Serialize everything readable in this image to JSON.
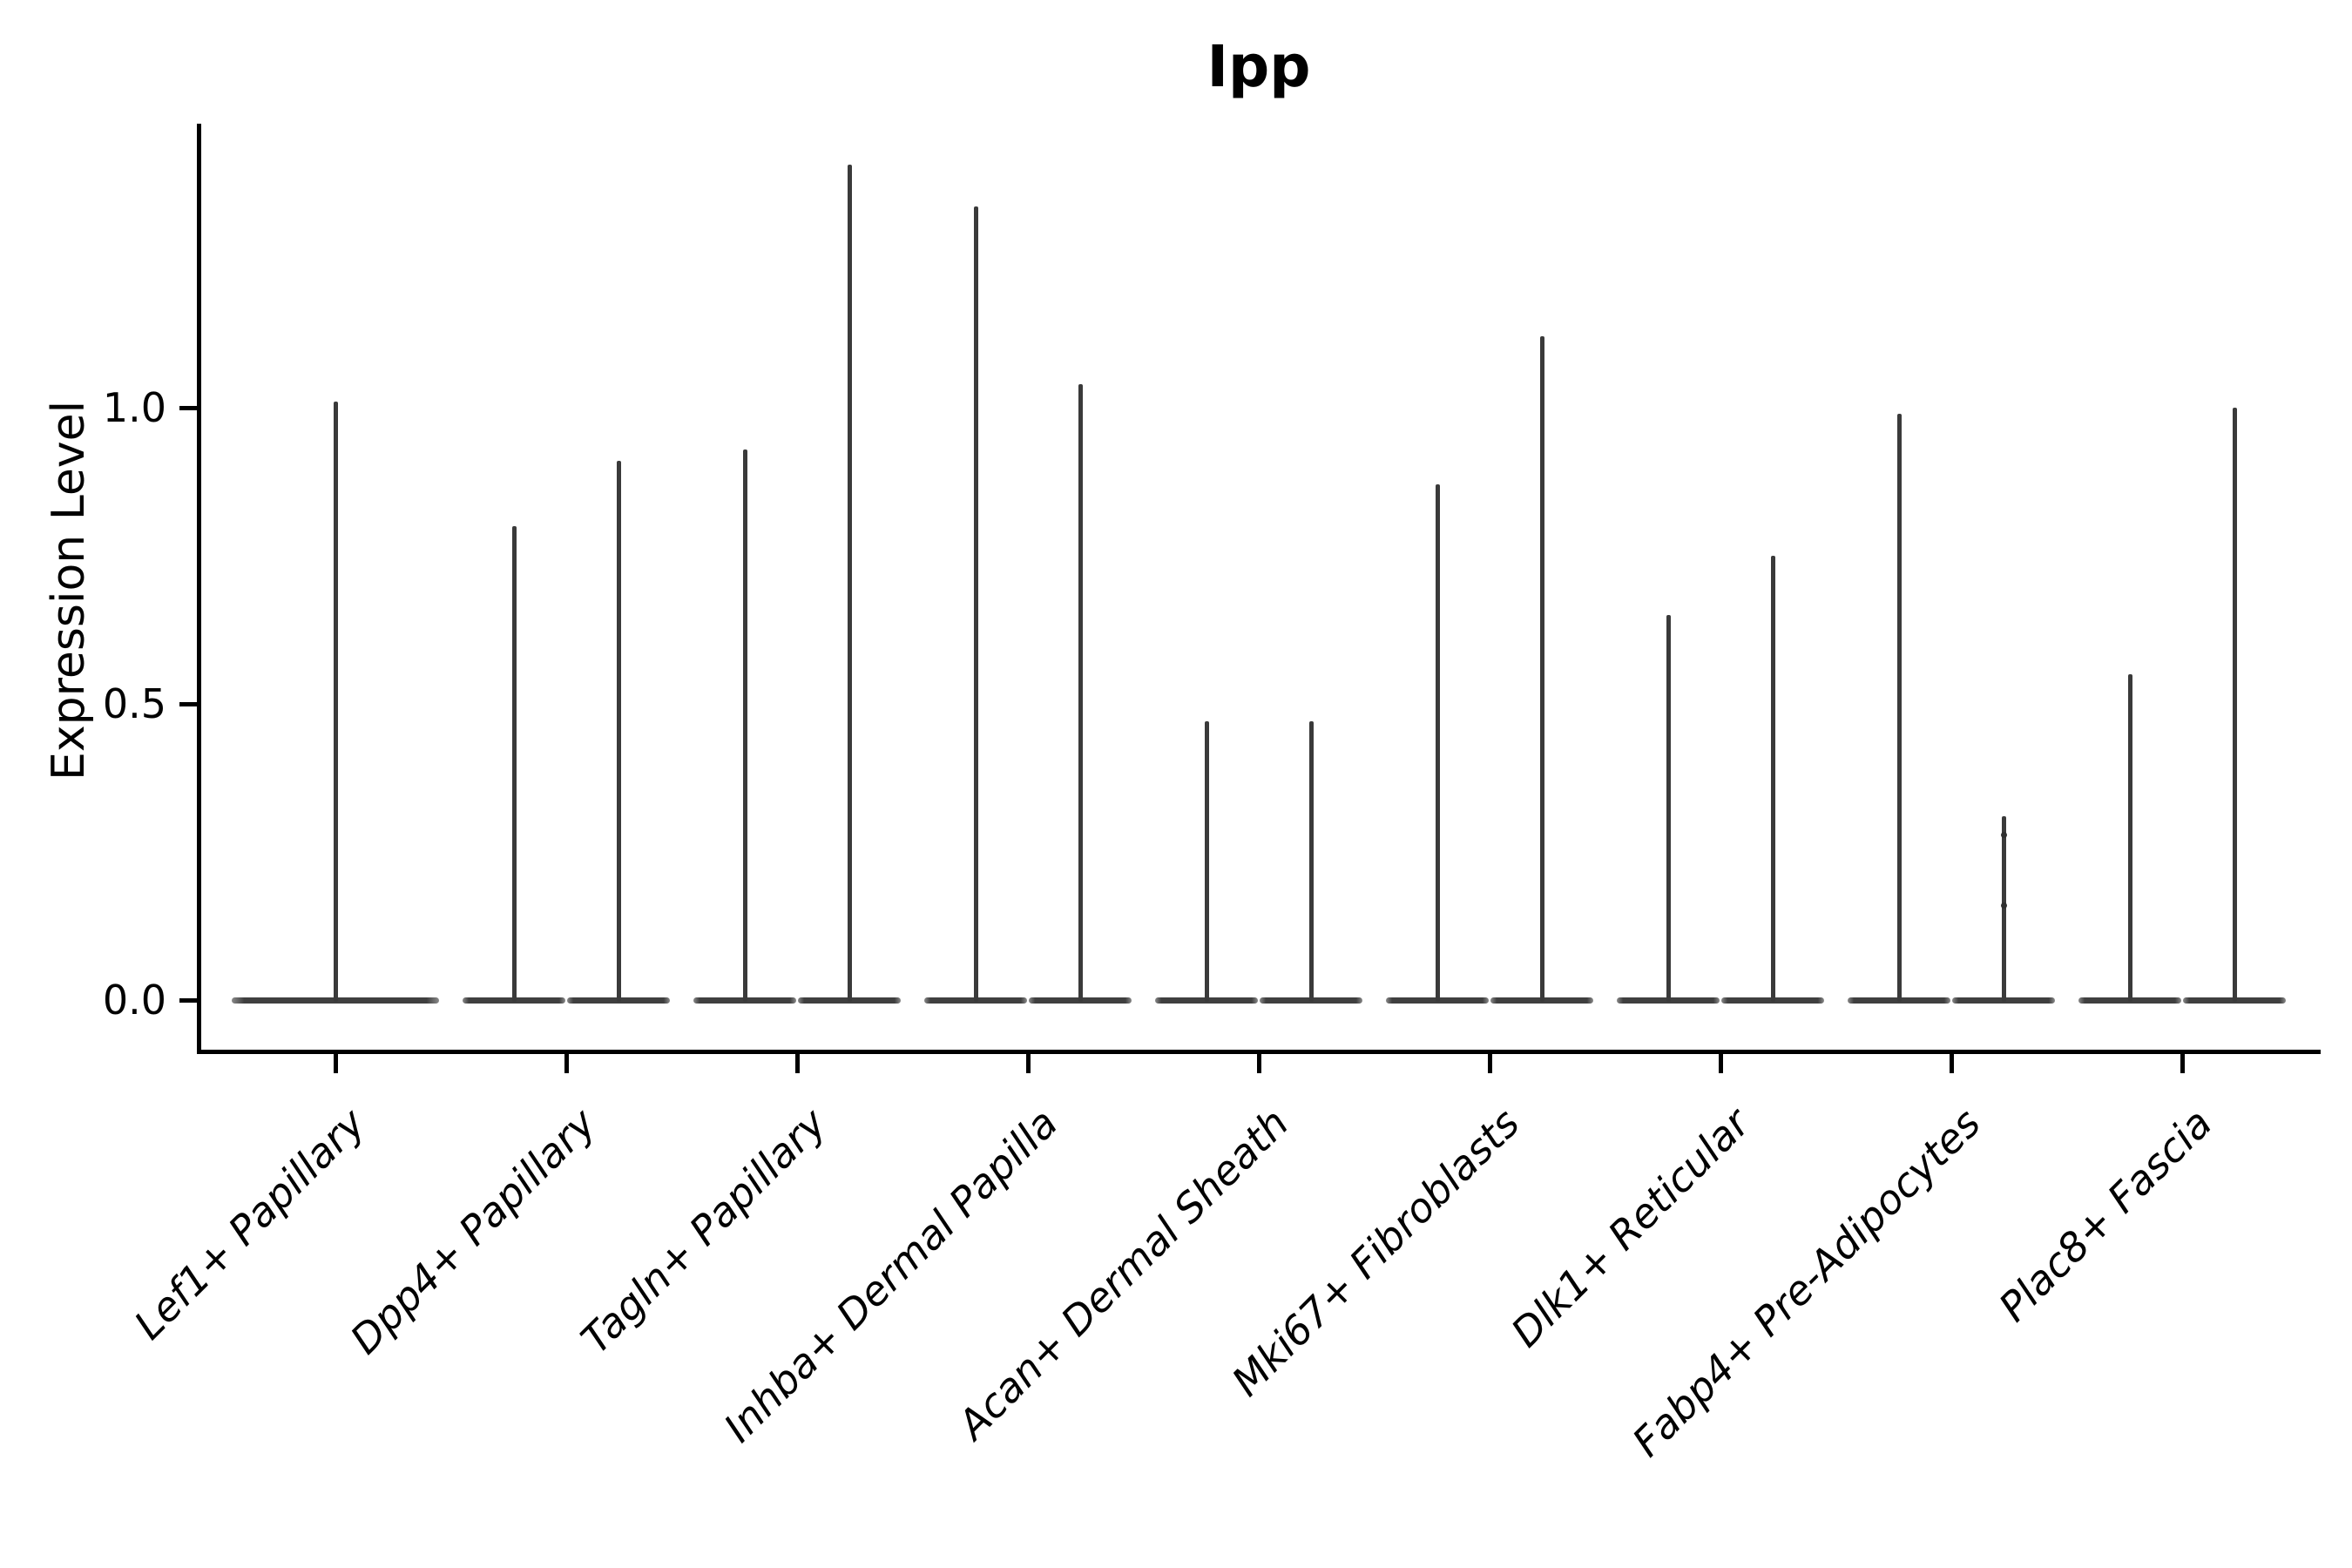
{
  "chart_data": {
    "type": "violin",
    "title": "Ipp",
    "xlabel": "",
    "ylabel": "Expression Level",
    "yticks": [
      "0.0",
      "0.5",
      "1.0"
    ],
    "ytick_values": [
      0.0,
      0.5,
      1.0
    ],
    "ylim": [
      -0.08,
      1.48
    ],
    "grid": false,
    "legend": "none",
    "categories": [
      "Lef1+ Papillary",
      "Dpp4+ Papillary",
      "Tagln+ Papillary",
      "Inhba+ Dermal Papilla",
      "Acan+ Dermal Sheath",
      "Mki67+ Fibroblasts",
      "Dlk1+ Reticular",
      "Fabp4+ Pre-Adipocytes",
      "Plac8+ Fascia"
    ],
    "series": [
      {
        "category": "Lef1+ Papillary",
        "violins": [
          {
            "group": "single",
            "max_expression": 1.01,
            "baseline_expression": 0.0
          }
        ]
      },
      {
        "category": "Dpp4+ Papillary",
        "violins": [
          {
            "group": "left",
            "max_expression": 0.8,
            "baseline_expression": 0.0
          },
          {
            "group": "right",
            "max_expression": 0.91,
            "baseline_expression": 0.0
          }
        ]
      },
      {
        "category": "Tagln+ Papillary",
        "violins": [
          {
            "group": "left",
            "max_expression": 0.93,
            "baseline_expression": 0.0
          },
          {
            "group": "right",
            "max_expression": 1.41,
            "baseline_expression": 0.0
          }
        ]
      },
      {
        "category": "Inhba+ Dermal Papilla",
        "violins": [
          {
            "group": "left",
            "max_expression": 1.34,
            "baseline_expression": 0.0
          },
          {
            "group": "right",
            "max_expression": 1.04,
            "baseline_expression": 0.0
          }
        ]
      },
      {
        "category": "Acan+ Dermal Sheath",
        "violins": [
          {
            "group": "left",
            "max_expression": 0.47,
            "baseline_expression": 0.0
          },
          {
            "group": "right",
            "max_expression": 0.47,
            "baseline_expression": 0.0
          }
        ]
      },
      {
        "category": "Mki67+ Fibroblasts",
        "violins": [
          {
            "group": "left",
            "max_expression": 0.87,
            "baseline_expression": 0.0
          },
          {
            "group": "right",
            "max_expression": 1.12,
            "baseline_expression": 0.0
          }
        ]
      },
      {
        "category": "Dlk1+ Reticular",
        "violins": [
          {
            "group": "left",
            "max_expression": 0.65,
            "baseline_expression": 0.0
          },
          {
            "group": "right",
            "max_expression": 0.75,
            "baseline_expression": 0.0
          }
        ]
      },
      {
        "category": "Fabp4+ Pre-Adipocytes",
        "violins": [
          {
            "group": "left",
            "max_expression": 0.99,
            "baseline_expression": 0.0
          },
          {
            "group": "right",
            "max_expression": 0.31,
            "baseline_expression": 0.0,
            "point_marks": [
              0.28,
              0.16
            ]
          }
        ]
      },
      {
        "category": "Plac8+ Fascia",
        "violins": [
          {
            "group": "left",
            "max_expression": 0.55,
            "baseline_expression": 0.0
          },
          {
            "group": "right",
            "max_expression": 1.0,
            "baseline_expression": 0.0
          }
        ]
      }
    ]
  },
  "colors": {
    "violin_stroke": "#3a3a3a",
    "axis": "#000000",
    "background": "#ffffff"
  }
}
